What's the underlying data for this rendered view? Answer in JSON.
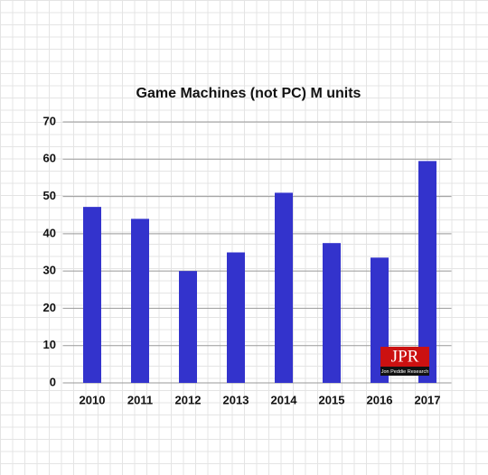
{
  "chart_data": {
    "type": "bar",
    "title": "Game Machines (not PC) M units",
    "categories": [
      "2010",
      "2011",
      "2012",
      "2013",
      "2014",
      "2015",
      "2016",
      "2017"
    ],
    "values": [
      47.2,
      44,
      30,
      35,
      51,
      37.5,
      33.6,
      59.5
    ],
    "color": "#3333cc",
    "ylim": [
      0,
      70
    ],
    "yticks": [
      0,
      10,
      20,
      30,
      40,
      50,
      60,
      70
    ],
    "grid": true
  },
  "logo": {
    "text": "JPR",
    "subtext": "Jon Peddie Research"
  }
}
